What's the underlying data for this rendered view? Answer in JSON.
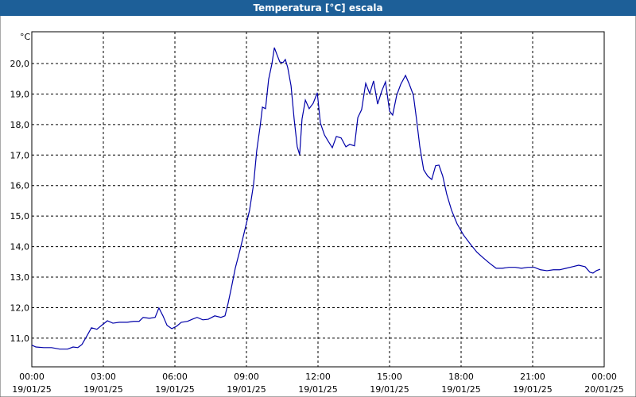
{
  "chart_data": {
    "type": "line",
    "title": "Temperatura [°C] escala",
    "y_label": "°C",
    "color": "#0000a8",
    "grid": true,
    "xlim": [
      0,
      24
    ],
    "xticks": [
      {
        "value": 0,
        "label": "00:00"
      },
      {
        "value": 3,
        "label": "03:00"
      },
      {
        "value": 6,
        "label": "06:00"
      },
      {
        "value": 9,
        "label": "09:00"
      },
      {
        "value": 12,
        "label": "12:00"
      },
      {
        "value": 15,
        "label": "15:00"
      },
      {
        "value": 18,
        "label": "18:00"
      },
      {
        "value": 21,
        "label": "21:00"
      },
      {
        "value": 24,
        "label": "00:00"
      }
    ],
    "xtick_dates": [
      "19/01/25",
      "19/01/25",
      "19/01/25",
      "19/01/25",
      "19/01/25",
      "19/01/25",
      "19/01/25",
      "19/01/25",
      "20/01/25"
    ],
    "ylim": [
      10.06,
      21.04
    ],
    "yticks": [
      {
        "value": 11,
        "label": "11,0"
      },
      {
        "value": 12,
        "label": "12,0"
      },
      {
        "value": 13,
        "label": "13,0"
      },
      {
        "value": 14,
        "label": "14,0"
      },
      {
        "value": 15,
        "label": "15,0"
      },
      {
        "value": 16,
        "label": "16,0"
      },
      {
        "value": 17,
        "label": "17,0"
      },
      {
        "value": 18,
        "label": "18,0"
      },
      {
        "value": 19,
        "label": "19,0"
      },
      {
        "value": 20,
        "label": "20,0"
      }
    ],
    "x": [
      0,
      0.17,
      0.5,
      0.83,
      1.17,
      1.5,
      1.73,
      1.93,
      2.1,
      2.33,
      2.5,
      2.73,
      2.93,
      3.17,
      3.4,
      3.67,
      4.0,
      4.27,
      4.5,
      4.67,
      4.93,
      5.17,
      5.33,
      5.5,
      5.67,
      5.87,
      6.07,
      6.27,
      6.53,
      6.73,
      6.93,
      7.17,
      7.4,
      7.67,
      7.93,
      8.1,
      8.23,
      8.37,
      8.53,
      8.73,
      8.93,
      9.13,
      9.3,
      9.43,
      9.57,
      9.67,
      9.8,
      9.93,
      10.07,
      10.17,
      10.27,
      10.4,
      10.53,
      10.63,
      10.73,
      10.87,
      11.0,
      11.13,
      11.23,
      11.33,
      11.47,
      11.63,
      11.8,
      11.97,
      12.1,
      12.27,
      12.43,
      12.6,
      12.77,
      12.97,
      13.17,
      13.33,
      13.53,
      13.67,
      13.83,
      14.0,
      14.17,
      14.33,
      14.5,
      14.67,
      14.83,
      15.0,
      15.13,
      15.3,
      15.47,
      15.67,
      15.83,
      16.0,
      16.13,
      16.27,
      16.43,
      16.6,
      16.77,
      16.93,
      17.07,
      17.23,
      17.4,
      17.6,
      17.83,
      18.1,
      18.4,
      18.67,
      18.93,
      19.2,
      19.47,
      19.73,
      20.0,
      20.27,
      20.53,
      20.8,
      21.07,
      21.33,
      21.6,
      21.87,
      22.13,
      22.4,
      22.67,
      22.93,
      23.2,
      23.4,
      23.53,
      23.67,
      23.83
    ],
    "values": [
      10.77,
      10.71,
      10.69,
      10.69,
      10.64,
      10.64,
      10.71,
      10.69,
      10.79,
      11.1,
      11.34,
      11.29,
      11.42,
      11.57,
      11.49,
      11.52,
      11.52,
      11.55,
      11.55,
      11.68,
      11.65,
      11.68,
      11.99,
      11.73,
      11.42,
      11.31,
      11.39,
      11.52,
      11.55,
      11.62,
      11.68,
      11.6,
      11.62,
      11.73,
      11.68,
      11.73,
      12.14,
      12.66,
      13.29,
      13.89,
      14.54,
      15.19,
      16.05,
      17.14,
      17.92,
      18.57,
      18.52,
      19.48,
      20.0,
      20.52,
      20.31,
      20.05,
      20.03,
      20.13,
      19.87,
      19.27,
      18.18,
      17.27,
      17.01,
      18.18,
      18.8,
      18.52,
      18.7,
      19.04,
      18.05,
      17.66,
      17.45,
      17.24,
      17.61,
      17.56,
      17.27,
      17.35,
      17.3,
      18.23,
      18.49,
      19.35,
      19.01,
      19.43,
      18.67,
      19.09,
      19.4,
      18.44,
      18.31,
      18.96,
      19.32,
      19.61,
      19.32,
      18.96,
      18.18,
      17.27,
      16.52,
      16.31,
      16.2,
      16.65,
      16.67,
      16.31,
      15.71,
      15.19,
      14.75,
      14.38,
      14.07,
      13.81,
      13.63,
      13.45,
      13.29,
      13.29,
      13.32,
      13.32,
      13.29,
      13.32,
      13.32,
      13.24,
      13.21,
      13.24,
      13.24,
      13.29,
      13.34,
      13.39,
      13.34,
      13.16,
      13.13,
      13.21,
      13.26
    ]
  }
}
